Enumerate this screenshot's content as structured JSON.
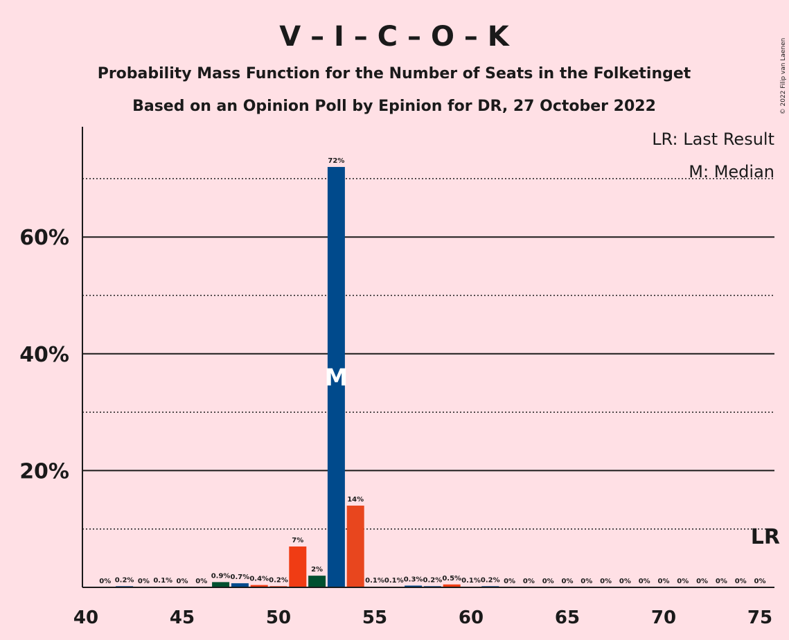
{
  "chart_data": {
    "type": "bar",
    "title": "V – I – C – O – K",
    "subtitle_lines": [
      "Probability Mass Function for the Number of Seats in the Folketinget",
      "Based on an Opinion Poll by Epinion for DR, 27 October 2022"
    ],
    "copyright": "© 2022 Filip van Laenen",
    "x_range": [
      40,
      75
    ],
    "x_ticks": [
      40,
      45,
      50,
      55,
      60,
      65,
      70,
      75
    ],
    "ylim": [
      0,
      79
    ],
    "y_ticks": [
      {
        "value": 20,
        "label": "20%"
      },
      {
        "value": 40,
        "label": "40%"
      },
      {
        "value": 60,
        "label": "60%"
      }
    ],
    "y_dotted_lines": [
      10,
      30,
      50,
      70
    ],
    "legend": [
      "LR: Last Result",
      "M: Median"
    ],
    "last_result": {
      "seat": 75,
      "label": "LR"
    },
    "median": {
      "seat": 53,
      "label": "M"
    },
    "colors": {
      "background": "#FFE0E5",
      "blue": "#004A8C",
      "red_orange": "#F03C14",
      "orange_red": "#E8461E",
      "dark_green": "#005030",
      "text": "#1a1a1a"
    },
    "bars": [
      {
        "seat": 41,
        "value": 0.0,
        "label": "0%",
        "color": "blue"
      },
      {
        "seat": 42,
        "value": 0.2,
        "label": "0.2%",
        "color": "blue"
      },
      {
        "seat": 43,
        "value": 0.0,
        "label": "0%",
        "color": "blue"
      },
      {
        "seat": 44,
        "value": 0.1,
        "label": "0.1%",
        "color": "blue"
      },
      {
        "seat": 45,
        "value": 0.0,
        "label": "0%",
        "color": "blue"
      },
      {
        "seat": 46,
        "value": 0.0,
        "label": "0%",
        "color": "blue"
      },
      {
        "seat": 47,
        "value": 0.9,
        "label": "0.9%",
        "color": "dark_green"
      },
      {
        "seat": 48,
        "value": 0.7,
        "label": "0.7%",
        "color": "blue"
      },
      {
        "seat": 49,
        "value": 0.4,
        "label": "0.4%",
        "color": "red_orange"
      },
      {
        "seat": 50,
        "value": 0.2,
        "label": "0.2%",
        "color": "red_orange"
      },
      {
        "seat": 51,
        "value": 7.0,
        "label": "7%",
        "color": "red_orange"
      },
      {
        "seat": 52,
        "value": 2.0,
        "label": "2%",
        "color": "dark_green"
      },
      {
        "seat": 53,
        "value": 72.0,
        "label": "72%",
        "color": "blue"
      },
      {
        "seat": 54,
        "value": 14.0,
        "label": "14%",
        "color": "orange_red"
      },
      {
        "seat": 55,
        "value": 0.1,
        "label": "0.1%",
        "color": "blue"
      },
      {
        "seat": 56,
        "value": 0.1,
        "label": "0.1%",
        "color": "blue"
      },
      {
        "seat": 57,
        "value": 0.3,
        "label": "0.3%",
        "color": "blue"
      },
      {
        "seat": 58,
        "value": 0.2,
        "label": "0.2%",
        "color": "blue"
      },
      {
        "seat": 59,
        "value": 0.5,
        "label": "0.5%",
        "color": "red_orange"
      },
      {
        "seat": 60,
        "value": 0.1,
        "label": "0.1%",
        "color": "blue"
      },
      {
        "seat": 61,
        "value": 0.2,
        "label": "0.2%",
        "color": "blue"
      },
      {
        "seat": 62,
        "value": 0.0,
        "label": "0%",
        "color": "blue"
      },
      {
        "seat": 63,
        "value": 0.0,
        "label": "0%",
        "color": "blue"
      },
      {
        "seat": 64,
        "value": 0.0,
        "label": "0%",
        "color": "blue"
      },
      {
        "seat": 65,
        "value": 0.0,
        "label": "0%",
        "color": "blue"
      },
      {
        "seat": 66,
        "value": 0.0,
        "label": "0%",
        "color": "blue"
      },
      {
        "seat": 67,
        "value": 0.0,
        "label": "0%",
        "color": "blue"
      },
      {
        "seat": 68,
        "value": 0.0,
        "label": "0%",
        "color": "blue"
      },
      {
        "seat": 69,
        "value": 0.0,
        "label": "0%",
        "color": "blue"
      },
      {
        "seat": 70,
        "value": 0.0,
        "label": "0%",
        "color": "blue"
      },
      {
        "seat": 71,
        "value": 0.0,
        "label": "0%",
        "color": "blue"
      },
      {
        "seat": 72,
        "value": 0.0,
        "label": "0%",
        "color": "blue"
      },
      {
        "seat": 73,
        "value": 0.0,
        "label": "0%",
        "color": "blue"
      },
      {
        "seat": 74,
        "value": 0.0,
        "label": "0%",
        "color": "blue"
      },
      {
        "seat": 75,
        "value": 0.0,
        "label": "0%",
        "color": "blue"
      }
    ]
  }
}
